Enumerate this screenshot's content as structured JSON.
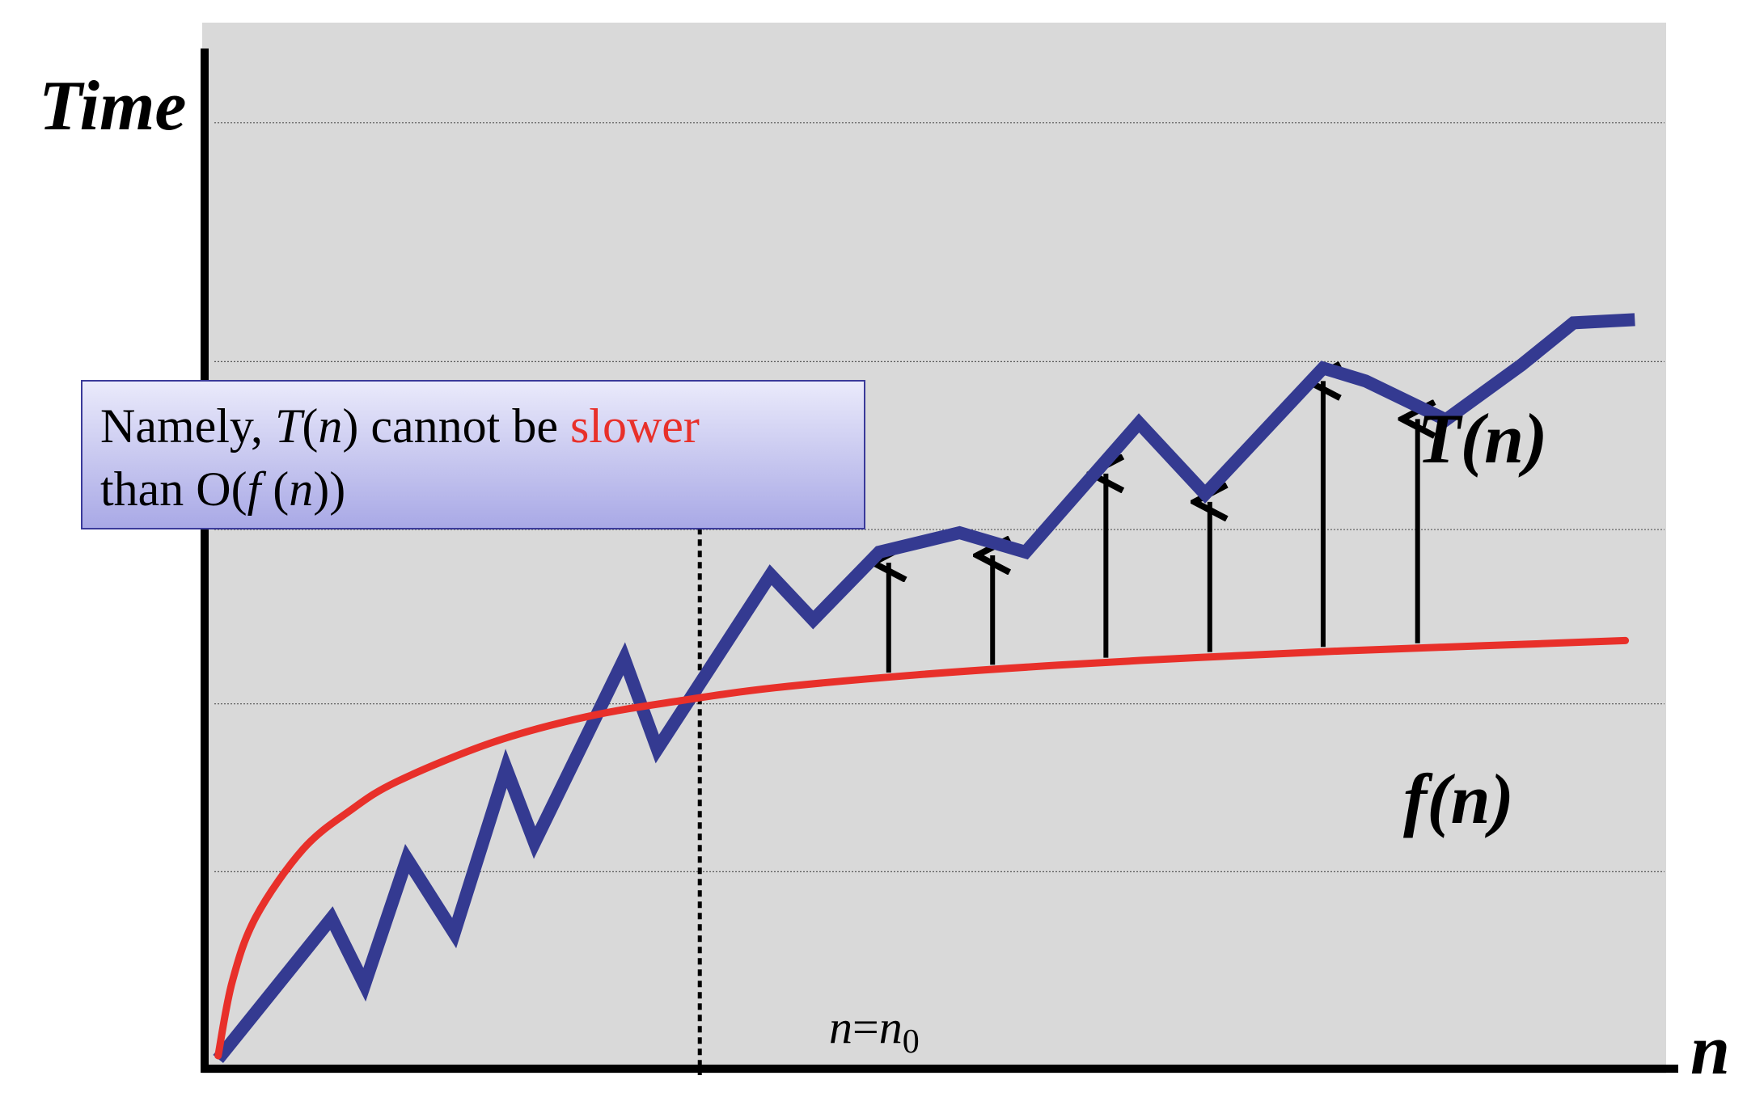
{
  "chart_data": {
    "type": "line",
    "title": "",
    "xlabel": "n",
    "ylabel": "Time",
    "grid": true,
    "threshold": {
      "label_var": "n",
      "label_eq": "=",
      "label_base": "n",
      "label_sub": "0",
      "x": 10.4
    },
    "series": [
      {
        "name": "T(n)",
        "color": "#343a91",
        "points": [
          [
            0.2,
            0.1
          ],
          [
            2.6,
            2.28
          ],
          [
            3.3,
            1.25
          ],
          [
            4.2,
            3.2
          ],
          [
            5.2,
            2.05
          ],
          [
            6.3,
            4.6
          ],
          [
            6.9,
            3.45
          ],
          [
            8.8,
            6.3
          ],
          [
            9.5,
            4.9
          ],
          [
            11.9,
            7.6
          ],
          [
            12.8,
            6.9
          ],
          [
            14.2,
            7.95
          ],
          [
            15.9,
            8.25
          ],
          [
            17.3,
            7.95
          ],
          [
            19.7,
            9.95
          ],
          [
            21.1,
            8.85
          ],
          [
            23.6,
            10.8
          ],
          [
            24.5,
            10.6
          ],
          [
            26.2,
            10.0
          ],
          [
            27.8,
            10.85
          ],
          [
            28.9,
            11.5
          ],
          [
            30.2,
            11.55
          ]
        ],
        "label_main": "T",
        "label_arg": "(n)"
      },
      {
        "name": "f(n)",
        "color": "#e8302a",
        "curve": "log",
        "points": [
          [
            0.2,
            0.15
          ],
          [
            0.5,
            1.3
          ],
          [
            1.0,
            2.3
          ],
          [
            2.0,
            3.35
          ],
          [
            3.0,
            3.95
          ],
          [
            4.0,
            4.4
          ],
          [
            6.0,
            5.0
          ],
          [
            8.0,
            5.4
          ],
          [
            10.0,
            5.65
          ],
          [
            12.0,
            5.85
          ],
          [
            15.0,
            6.05
          ],
          [
            18.0,
            6.2
          ],
          [
            21.0,
            6.32
          ],
          [
            24.0,
            6.42
          ],
          [
            27.0,
            6.5
          ],
          [
            30.0,
            6.58
          ]
        ],
        "label_main": "f",
        "label_arg": "(n)"
      }
    ],
    "arrows_x": [
      14.4,
      16.6,
      19.0,
      21.2,
      23.6,
      25.6
    ],
    "xlim": [
      0,
      31
    ],
    "ylim": [
      0,
      16
    ],
    "gridlines_y": [
      3.0,
      5.6,
      8.3,
      10.9,
      14.6
    ]
  },
  "callout": {
    "line1_a": "Namely, ",
    "line1_T": "T",
    "line1_paren_open": "(",
    "line1_n": "n",
    "line1_paren_close": ")",
    "line1_b": " cannot be ",
    "line1_red": "slower",
    "line2_a": "than O(",
    "line2_f": "f",
    "line2_b": " (",
    "line2_n": "n",
    "line2_c": "))"
  },
  "colors": {
    "plot_bg": "#d9d9d9",
    "axis": "#000000",
    "callout_border": "#3a3a9a"
  }
}
